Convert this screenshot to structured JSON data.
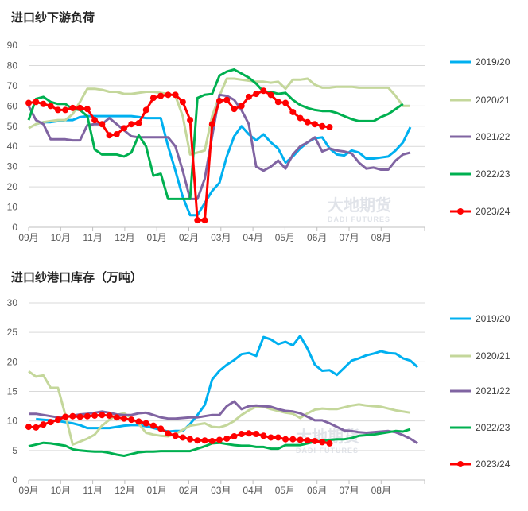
{
  "chart_data": [
    {
      "type": "line",
      "title": "进口纱下游负荷",
      "ylim": [
        0,
        90
      ],
      "yticks": [
        0,
        10,
        20,
        30,
        40,
        50,
        60,
        70,
        80,
        90
      ],
      "x_tick_labels": [
        "09月",
        "10月",
        "11月",
        "12月",
        "01月",
        "02月",
        "03月",
        "04月",
        "05月",
        "06月",
        "07月",
        "08月"
      ],
      "grid": true,
      "legend": "right",
      "watermark": "大地期货 DADI FUTURES",
      "series": [
        {
          "name": "2019/20",
          "color": "#00b0f0",
          "markers": false,
          "values": [
            null,
            51,
            52,
            52,
            52.5,
            53,
            53,
            54.5,
            55,
            55,
            55,
            55,
            55,
            55,
            55,
            54.5,
            54,
            54,
            54,
            40,
            28,
            15,
            6,
            6,
            12,
            18,
            22,
            35,
            45,
            50,
            46,
            43,
            46,
            42,
            39,
            32,
            35,
            39,
            42,
            44,
            44.5,
            39,
            36,
            35.5,
            38,
            37,
            34,
            34,
            34.5,
            35,
            38,
            42,
            49.5
          ]
        },
        {
          "name": "2020/21",
          "color": "#c4d79b",
          "markers": false,
          "values": [
            49,
            51,
            52,
            52.5,
            53,
            53,
            56,
            62,
            68.5,
            68.5,
            68,
            67,
            67,
            66,
            66,
            66.5,
            67,
            67,
            66.5,
            66,
            65,
            55,
            36,
            37,
            38,
            55,
            65,
            73.5,
            73.5,
            73,
            72.5,
            72,
            72,
            71.5,
            72,
            68.5,
            73,
            73,
            73.5,
            70.5,
            69,
            69,
            69.5,
            69.5,
            69.5,
            69,
            69,
            69,
            69,
            69,
            65,
            60,
            60
          ]
        },
        {
          "name": "2021/22",
          "color": "#8064a2",
          "markers": false,
          "values": [
            60,
            53,
            51,
            43.5,
            43.5,
            43.5,
            43,
            43,
            50.5,
            51,
            51,
            54,
            51,
            48,
            45,
            44.5,
            44.5,
            44.5,
            44.5,
            44.5,
            40,
            28,
            14,
            14,
            24,
            45,
            65.5,
            65,
            63,
            58,
            51,
            30,
            28,
            30,
            33,
            29,
            36,
            40,
            42,
            44.5,
            37.5,
            39,
            38,
            37.5,
            36.5,
            32,
            29,
            29.5,
            28.5,
            28.5,
            33,
            36,
            37
          ]
        },
        {
          "name": "2022/23",
          "color": "#00b050",
          "markers": false,
          "values": [
            53,
            63.5,
            64.5,
            62,
            61,
            61,
            58.5,
            58,
            55,
            38.5,
            36,
            36,
            36,
            35,
            37,
            45.5,
            40,
            25.5,
            26.5,
            14,
            14,
            14,
            14,
            64,
            65.5,
            66,
            75,
            77,
            78,
            76,
            74,
            71,
            67,
            67,
            66,
            66.5,
            63,
            60.5,
            59,
            58,
            57.5,
            57.5,
            56.5,
            55,
            53.5,
            52.5,
            52.5,
            52.5,
            54.5,
            56,
            58.5,
            61
          ]
        },
        {
          "name": "2023/24",
          "color": "#ff0000",
          "markers": true,
          "values": [
            61.5,
            62,
            61,
            60,
            58,
            58,
            59,
            59,
            58.5,
            53,
            51,
            45.5,
            46,
            49,
            51,
            51.5,
            58,
            64,
            65,
            65.5,
            65.5,
            62,
            53,
            3.5,
            3.5,
            51,
            62.5,
            63,
            58.5,
            60,
            64.5,
            66,
            67.5,
            65.5,
            62,
            61.5,
            57,
            54,
            52,
            51,
            50,
            49.5
          ]
        }
      ]
    },
    {
      "type": "line",
      "title": "进口纱港口库存（万吨）",
      "ylim": [
        0,
        30
      ],
      "yticks": [
        0,
        5,
        10,
        15,
        20,
        25,
        30
      ],
      "x_tick_labels": [
        "09月",
        "10月",
        "11月",
        "12月",
        "01月",
        "02月",
        "03月",
        "04月",
        "05月",
        "06月",
        "07月",
        "08月"
      ],
      "grid": true,
      "legend": "right",
      "watermark": "大地期货 DADI FUTURES",
      "series": [
        {
          "name": "2019/20",
          "color": "#00b0f0",
          "markers": false,
          "values": [
            null,
            10.3,
            10.2,
            10.1,
            10,
            9.8,
            9.6,
            9.3,
            8.8,
            8.8,
            8.8,
            8.8,
            9,
            9.2,
            9.3,
            9.3,
            9.1,
            8.8,
            8.5,
            8.2,
            8.3,
            8.3,
            9.5,
            11,
            12.7,
            17,
            18.5,
            19.5,
            20.3,
            21.3,
            21.5,
            21,
            24.2,
            23.8,
            23,
            23.4,
            22.8,
            24.4,
            22.2,
            19.5,
            18.5,
            18.6,
            17.8,
            19,
            20.2,
            20.6,
            21.1,
            21.4,
            21.8,
            21.5,
            21.4,
            20.6,
            20.2,
            19.1
          ]
        },
        {
          "name": "2020/21",
          "color": "#c4d79b",
          "markers": false,
          "values": [
            18.4,
            17.5,
            17.7,
            15.6,
            15.6,
            11,
            6,
            6.5,
            7,
            7.7,
            9.2,
            10.2,
            11,
            11.3,
            10.5,
            9.5,
            8,
            7.7,
            7.5,
            7.4,
            7.8,
            8.5,
            9.2,
            9.4,
            9.6,
            9,
            8.9,
            9.3,
            10,
            11,
            11.8,
            12.4,
            12.4,
            12,
            11.7,
            11.4,
            11.2,
            10.5,
            11.3,
            11.9,
            12.1,
            12,
            12,
            12.3,
            12.6,
            12.8,
            12.6,
            12.5,
            12.4,
            12.1,
            11.8,
            11.6,
            11.4
          ]
        },
        {
          "name": "2021/22",
          "color": "#8064a2",
          "markers": false,
          "values": [
            11.2,
            11.2,
            11,
            10.8,
            10.6,
            10.7,
            10.9,
            11.1,
            11.2,
            11.4,
            11.6,
            11.4,
            11.1,
            11,
            11,
            11.3,
            11.4,
            11,
            10.6,
            10.4,
            10.4,
            10.5,
            10.6,
            10.6,
            10.8,
            11,
            11,
            12.5,
            13.3,
            12,
            12.5,
            12.6,
            12.5,
            12.4,
            12,
            11.7,
            11.6,
            11.3,
            10.7,
            10.1,
            10.1,
            9.6,
            9,
            8.4,
            8.3,
            8.1,
            8,
            8.1,
            8.2,
            8.3,
            8.1,
            7.6,
            7,
            6.2
          ]
        },
        {
          "name": "2022/23",
          "color": "#00b050",
          "markers": false,
          "values": [
            5.7,
            6,
            6.3,
            6.2,
            6,
            5.8,
            5.2,
            5,
            4.9,
            4.8,
            4.8,
            4.6,
            4.3,
            4.1,
            4.4,
            4.7,
            4.8,
            4.8,
            4.9,
            4.9,
            4.9,
            4.9,
            4.9,
            5.3,
            5.7,
            6.2,
            6.3,
            6.1,
            5.9,
            5.8,
            5.8,
            5.6,
            5.6,
            5.3,
            5.3,
            5.9,
            5.9,
            5.9,
            6.2,
            6.5,
            6.6,
            6.8,
            6.9,
            6.9,
            7.1,
            7.5,
            7.6,
            7.7,
            7.9,
            8.1,
            8.3,
            8.2,
            8.6
          ]
        },
        {
          "name": "2023/24",
          "color": "#ff0000",
          "markers": true,
          "values": [
            9,
            8.9,
            9.4,
            9.8,
            10.2,
            10.7,
            10.8,
            10.7,
            10.8,
            10.9,
            11,
            10.9,
            10.6,
            10.4,
            10.2,
            9.9,
            9.6,
            9.2,
            8.7,
            7.9,
            7.5,
            7.2,
            6.9,
            6.7,
            6.7,
            6.6,
            6.8,
            7,
            7.4,
            7.8,
            7.9,
            7.8,
            7.5,
            7.2,
            7.2,
            6.9,
            6.9,
            6.8,
            6.7,
            6.6,
            6.4,
            6.2
          ]
        }
      ]
    }
  ]
}
